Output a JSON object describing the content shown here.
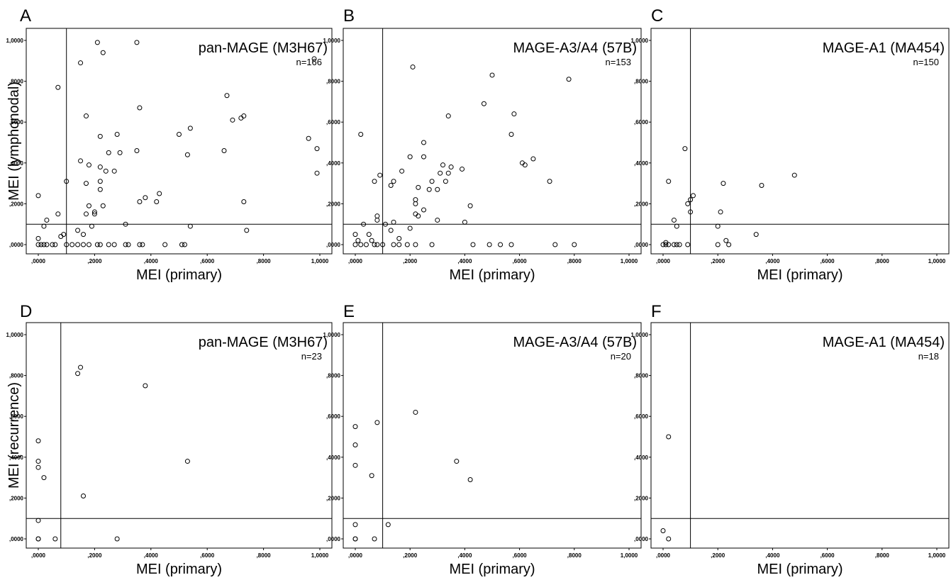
{
  "chart_data": [
    {
      "panel": "A",
      "type": "scatter",
      "title": "pan-MAGE (M3H67)",
      "n_label": "n=166",
      "xlabel": "MEI (primary)",
      "ylabel": "MEI (lymphonodal)",
      "xlim": [
        0,
        1
      ],
      "ylim": [
        0,
        1
      ],
      "xticks": [
        ",0000",
        ",2000",
        ",4000",
        ",6000",
        ",8000",
        "1,0000"
      ],
      "yticks": [
        ",0000",
        ",2000",
        ",4000",
        ",6000",
        ",8000",
        "1,0000"
      ],
      "ref_lines": {
        "x": 0.1,
        "y": 0.1
      },
      "points": [
        [
          0.0,
          0.03
        ],
        [
          0.0,
          0.24
        ],
        [
          0.02,
          0.09
        ],
        [
          0.03,
          0.12
        ],
        [
          0.07,
          0.15
        ],
        [
          0.07,
          0.77
        ],
        [
          0.08,
          0.04
        ],
        [
          0.09,
          0.05
        ],
        [
          0.1,
          0.31
        ],
        [
          0.14,
          0.07
        ],
        [
          0.15,
          0.41
        ],
        [
          0.15,
          0.89
        ],
        [
          0.16,
          0.05
        ],
        [
          0.17,
          0.15
        ],
        [
          0.17,
          0.3
        ],
        [
          0.17,
          0.63
        ],
        [
          0.18,
          0.19
        ],
        [
          0.18,
          0.39
        ],
        [
          0.19,
          0.09
        ],
        [
          0.2,
          0.15
        ],
        [
          0.2,
          0.16
        ],
        [
          0.21,
          0.99
        ],
        [
          0.22,
          0.31
        ],
        [
          0.22,
          0.27
        ],
        [
          0.22,
          0.38
        ],
        [
          0.22,
          0.53
        ],
        [
          0.23,
          0.19
        ],
        [
          0.23,
          0.94
        ],
        [
          0.24,
          0.36
        ],
        [
          0.25,
          0.45
        ],
        [
          0.27,
          0.36
        ],
        [
          0.28,
          0.54
        ],
        [
          0.29,
          0.45
        ],
        [
          0.31,
          0.1
        ],
        [
          0.35,
          0.46
        ],
        [
          0.35,
          0.99
        ],
        [
          0.36,
          0.21
        ],
        [
          0.36,
          0.67
        ],
        [
          0.38,
          0.23
        ],
        [
          0.42,
          0.21
        ],
        [
          0.43,
          0.25
        ],
        [
          0.5,
          0.54
        ],
        [
          0.53,
          0.44
        ],
        [
          0.54,
          0.09
        ],
        [
          0.54,
          0.57
        ],
        [
          0.66,
          0.46
        ],
        [
          0.67,
          0.73
        ],
        [
          0.69,
          0.61
        ],
        [
          0.72,
          0.62
        ],
        [
          0.73,
          0.63
        ],
        [
          0.73,
          0.21
        ],
        [
          0.74,
          0.07
        ],
        [
          0.96,
          0.52
        ],
        [
          0.99,
          0.47
        ],
        [
          0.98,
          0.91
        ],
        [
          0.99,
          0.35
        ],
        [
          0.0,
          0.0
        ],
        [
          0.01,
          0.0
        ],
        [
          0.02,
          0.0
        ],
        [
          0.03,
          0.0
        ],
        [
          0.05,
          0.0
        ],
        [
          0.06,
          0.0
        ],
        [
          0.1,
          0.0
        ],
        [
          0.12,
          0.0
        ],
        [
          0.14,
          0.0
        ],
        [
          0.16,
          0.0
        ],
        [
          0.18,
          0.0
        ],
        [
          0.21,
          0.0
        ],
        [
          0.22,
          0.0
        ],
        [
          0.25,
          0.0
        ],
        [
          0.27,
          0.0
        ],
        [
          0.31,
          0.0
        ],
        [
          0.32,
          0.0
        ],
        [
          0.36,
          0.0
        ],
        [
          0.37,
          0.0
        ],
        [
          0.45,
          0.0
        ],
        [
          0.51,
          0.0
        ],
        [
          0.52,
          0.0
        ]
      ]
    },
    {
      "panel": "B",
      "type": "scatter",
      "title": "MAGE-A3/A4 (57B)",
      "n_label": "n=153",
      "xlabel": "MEI (primary)",
      "ylabel": "",
      "xlim": [
        0,
        1
      ],
      "ylim": [
        0,
        1
      ],
      "xticks": [
        ",0000",
        ",2000",
        ",4000",
        ",6000",
        ",8000",
        "1,0000"
      ],
      "yticks": [
        ",0000",
        ",2000",
        ",4000",
        ",6000",
        ",8000",
        "1,0000"
      ],
      "ref_lines": {
        "x": 0.1,
        "y": 0.1
      },
      "points": [
        [
          0.0,
          0.05
        ],
        [
          0.01,
          0.02
        ],
        [
          0.02,
          0.54
        ],
        [
          0.03,
          0.1
        ],
        [
          0.05,
          0.05
        ],
        [
          0.06,
          0.02
        ],
        [
          0.07,
          0.31
        ],
        [
          0.08,
          0.14
        ],
        [
          0.08,
          0.12
        ],
        [
          0.09,
          0.34
        ],
        [
          0.11,
          0.1
        ],
        [
          0.13,
          0.07
        ],
        [
          0.13,
          0.29
        ],
        [
          0.14,
          0.31
        ],
        [
          0.14,
          0.11
        ],
        [
          0.16,
          0.03
        ],
        [
          0.17,
          0.36
        ],
        [
          0.2,
          0.08
        ],
        [
          0.2,
          0.43
        ],
        [
          0.21,
          0.87
        ],
        [
          0.22,
          0.2
        ],
        [
          0.22,
          0.22
        ],
        [
          0.22,
          0.15
        ],
        [
          0.23,
          0.28
        ],
        [
          0.23,
          0.14
        ],
        [
          0.25,
          0.17
        ],
        [
          0.25,
          0.43
        ],
        [
          0.25,
          0.5
        ],
        [
          0.27,
          0.27
        ],
        [
          0.28,
          0.31
        ],
        [
          0.3,
          0.27
        ],
        [
          0.3,
          0.12
        ],
        [
          0.31,
          0.35
        ],
        [
          0.32,
          0.39
        ],
        [
          0.33,
          0.31
        ],
        [
          0.34,
          0.63
        ],
        [
          0.34,
          0.35
        ],
        [
          0.35,
          0.38
        ],
        [
          0.39,
          0.37
        ],
        [
          0.4,
          0.11
        ],
        [
          0.42,
          0.19
        ],
        [
          0.47,
          0.69
        ],
        [
          0.5,
          0.83
        ],
        [
          0.57,
          0.54
        ],
        [
          0.58,
          0.64
        ],
        [
          0.61,
          0.4
        ],
        [
          0.62,
          0.39
        ],
        [
          0.65,
          0.42
        ],
        [
          0.71,
          0.31
        ],
        [
          0.78,
          0.81
        ],
        [
          0.0,
          0.0
        ],
        [
          0.02,
          0.0
        ],
        [
          0.04,
          0.0
        ],
        [
          0.07,
          0.0
        ],
        [
          0.08,
          0.0
        ],
        [
          0.1,
          0.0
        ],
        [
          0.14,
          0.0
        ],
        [
          0.16,
          0.0
        ],
        [
          0.19,
          0.0
        ],
        [
          0.22,
          0.0
        ],
        [
          0.28,
          0.0
        ],
        [
          0.43,
          0.0
        ],
        [
          0.49,
          0.0
        ],
        [
          0.53,
          0.0
        ],
        [
          0.57,
          0.0
        ],
        [
          0.73,
          0.0
        ],
        [
          0.8,
          0.0
        ]
      ]
    },
    {
      "panel": "C",
      "type": "scatter",
      "title": "MAGE-A1 (MA454)",
      "n_label": "n=150",
      "xlabel": "MEI (primary)",
      "ylabel": "",
      "xlim": [
        0,
        1
      ],
      "ylim": [
        0,
        1
      ],
      "xticks": [
        ",0000",
        ",2000",
        ",4000",
        ",6000",
        ",8000",
        "1,0000"
      ],
      "yticks": [
        ",0000",
        ",2000",
        ",4000",
        ",6000",
        ",8000",
        "1,0000"
      ],
      "ref_lines": {
        "x": 0.1,
        "y": 0.1
      },
      "points": [
        [
          0.01,
          0.01
        ],
        [
          0.02,
          0.31
        ],
        [
          0.04,
          0.12
        ],
        [
          0.05,
          0.09
        ],
        [
          0.08,
          0.47
        ],
        [
          0.09,
          0.2
        ],
        [
          0.1,
          0.16
        ],
        [
          0.1,
          0.22
        ],
        [
          0.11,
          0.24
        ],
        [
          0.2,
          0.09
        ],
        [
          0.21,
          0.16
        ],
        [
          0.22,
          0.3
        ],
        [
          0.23,
          0.02
        ],
        [
          0.34,
          0.05
        ],
        [
          0.36,
          0.29
        ],
        [
          0.48,
          0.34
        ],
        [
          0.0,
          0.0
        ],
        [
          0.01,
          0.0
        ],
        [
          0.02,
          0.0
        ],
        [
          0.04,
          0.0
        ],
        [
          0.05,
          0.0
        ],
        [
          0.06,
          0.0
        ],
        [
          0.09,
          0.0
        ],
        [
          0.2,
          0.0
        ],
        [
          0.24,
          0.0
        ]
      ]
    },
    {
      "panel": "D",
      "type": "scatter",
      "title": "pan-MAGE (M3H67)",
      "n_label": "n=23",
      "xlabel": "MEI (primary)",
      "ylabel": "MEI (recurrence)",
      "xlim": [
        0,
        1
      ],
      "ylim": [
        0,
        1
      ],
      "xticks": [
        ",0000",
        ",2000",
        ",4000",
        ",6000",
        ",8000",
        "1,0000"
      ],
      "yticks": [
        ",0000",
        ",2000",
        ",4000",
        ",6000",
        ",8000",
        "1,0000"
      ],
      "ref_lines": {
        "x": 0.08,
        "y": 0.1
      },
      "points": [
        [
          0.0,
          0.0
        ],
        [
          0.0,
          0.0
        ],
        [
          0.0,
          0.09
        ],
        [
          0.0,
          0.35
        ],
        [
          0.0,
          0.38
        ],
        [
          0.0,
          0.48
        ],
        [
          0.02,
          0.3
        ],
        [
          0.06,
          0.0
        ],
        [
          0.14,
          0.81
        ],
        [
          0.15,
          0.84
        ],
        [
          0.16,
          0.21
        ],
        [
          0.28,
          0.0
        ],
        [
          0.38,
          0.75
        ],
        [
          0.53,
          0.38
        ]
      ]
    },
    {
      "panel": "E",
      "type": "scatter",
      "title": "MAGE-A3/A4 (57B)",
      "n_label": "n=20",
      "xlabel": "MEI (primary)",
      "ylabel": "",
      "xlim": [
        0,
        1
      ],
      "ylim": [
        0,
        1
      ],
      "xticks": [
        ",0000",
        ",2000",
        ",4000",
        ",6000",
        ",8000",
        "1,0000"
      ],
      "yticks": [
        ",0000",
        ",2000",
        ",4000",
        ",6000",
        ",8000",
        "1,0000"
      ],
      "ref_lines": {
        "x": 0.1,
        "y": 0.1
      },
      "points": [
        [
          0.0,
          0.0
        ],
        [
          0.0,
          0.0
        ],
        [
          0.0,
          0.07
        ],
        [
          0.0,
          0.36
        ],
        [
          0.0,
          0.46
        ],
        [
          0.0,
          0.55
        ],
        [
          0.06,
          0.31
        ],
        [
          0.07,
          0.0
        ],
        [
          0.08,
          0.57
        ],
        [
          0.12,
          0.07
        ],
        [
          0.22,
          0.62
        ],
        [
          0.37,
          0.38
        ],
        [
          0.42,
          0.29
        ]
      ]
    },
    {
      "panel": "F",
      "type": "scatter",
      "title": "MAGE-A1 (MA454)",
      "n_label": "n=18",
      "xlabel": "MEI (primary)",
      "ylabel": "",
      "xlim": [
        0,
        1
      ],
      "ylim": [
        0,
        1
      ],
      "xticks": [
        ",0000",
        ",2000",
        ",4000",
        ",6000",
        ",8000",
        "1,0000"
      ],
      "yticks": [
        ",0000",
        ",2000",
        ",4000",
        ",6000",
        ",8000",
        "1,0000"
      ],
      "ref_lines": {
        "x": 0.1,
        "y": 0.1
      },
      "points": [
        [
          0.0,
          0.04
        ],
        [
          0.02,
          0.5
        ],
        [
          0.02,
          0.0
        ]
      ]
    }
  ]
}
